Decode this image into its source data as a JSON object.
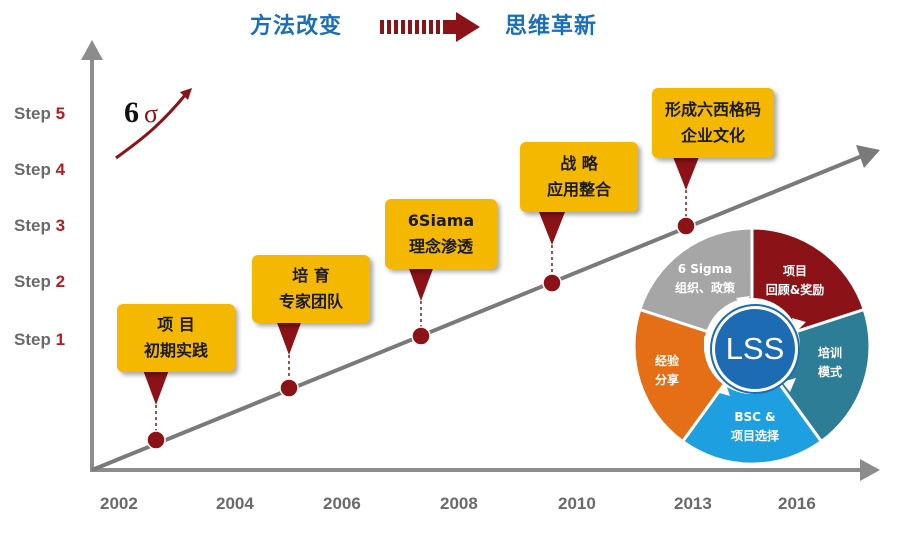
{
  "header": {
    "left": "方法改变",
    "right": "思维革新"
  },
  "logo": {
    "text": "6σ"
  },
  "steps": [
    {
      "label": "Step",
      "num": "5"
    },
    {
      "label": "Step",
      "num": "4"
    },
    {
      "label": "Step",
      "num": "3"
    },
    {
      "label": "Step",
      "num": "2"
    },
    {
      "label": "Step",
      "num": "1"
    }
  ],
  "years": [
    "2002",
    "2004",
    "2006",
    "2008",
    "2010",
    "2013",
    "2016"
  ],
  "milestones": [
    {
      "line1": "项 目",
      "line2": "初期实践"
    },
    {
      "line1": "培 育",
      "line2": "专家团队"
    },
    {
      "line1": "6Siama",
      "line2": "理念渗透"
    },
    {
      "line1": "战 略",
      "line2": "应用整合"
    },
    {
      "line1": "形成六西格码",
      "line2": "企业文化"
    }
  ],
  "cycle": {
    "center": "LSS",
    "segments": [
      {
        "line1": "项目",
        "line2": "回顾&奖励",
        "color": "#8b1317"
      },
      {
        "line1": "培训",
        "line2": "模式",
        "color": "#2e7d96"
      },
      {
        "line1": "BSC &",
        "line2": "项目选择",
        "color": "#1ea0e0"
      },
      {
        "line1": "经验",
        "line2": "分享",
        "color": "#e46f16"
      },
      {
        "line1": "6 Sigma",
        "line2": "组织、政策",
        "color": "#a6a6a6"
      }
    ]
  },
  "colors": {
    "header_text": "#1a70b8",
    "arrow": "#8b1317",
    "axis": "#8c8c8c",
    "card": "#f5b800",
    "step_num": "#b51c22"
  }
}
